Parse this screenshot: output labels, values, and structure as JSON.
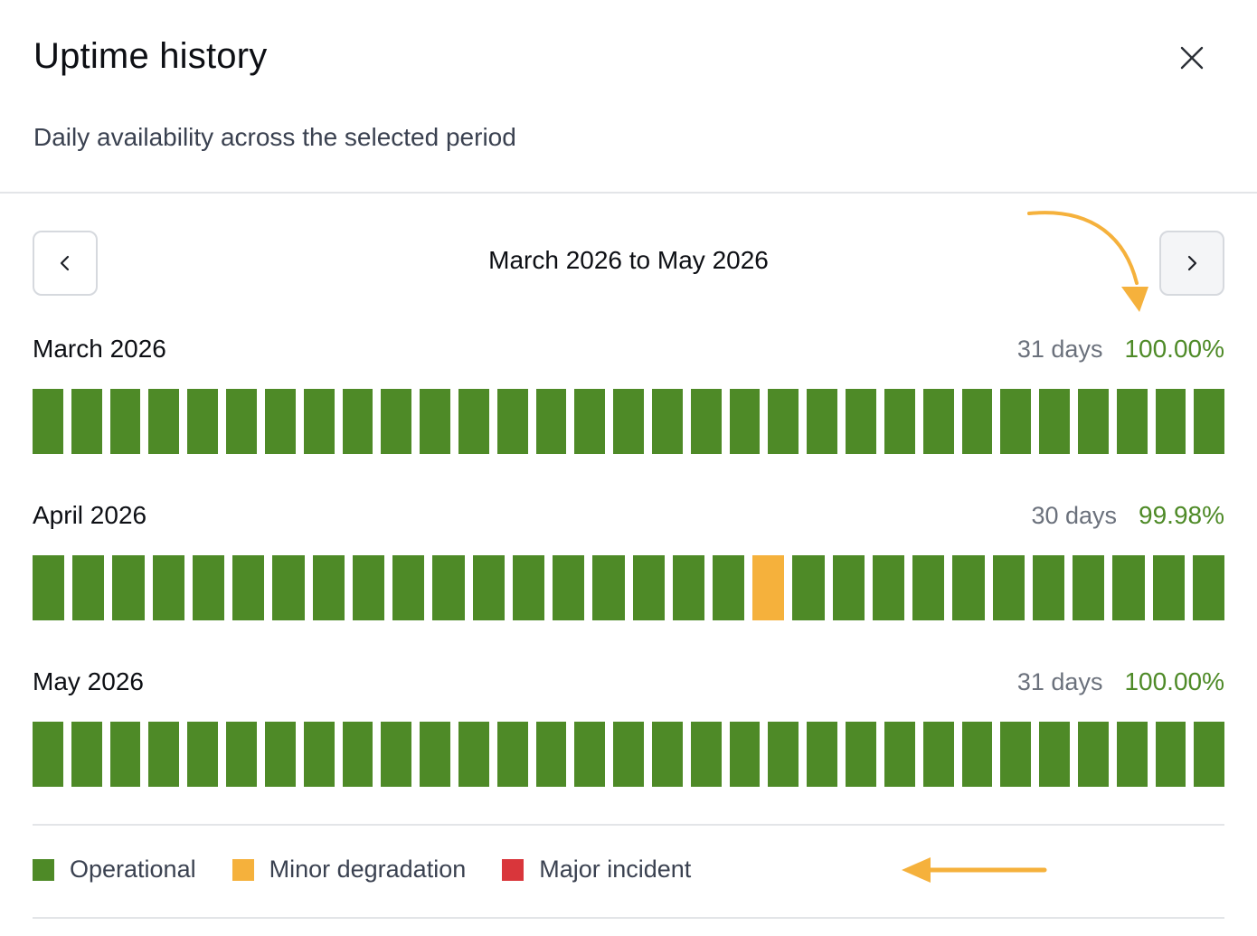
{
  "header": {
    "title": "Uptime history",
    "subtitle": "Daily availability across the selected period"
  },
  "navigation": {
    "range_label": "March 2026 to May 2026"
  },
  "months": [
    {
      "name": "March 2026",
      "days_label": "31 days",
      "uptime": "100.00%",
      "days": 31,
      "minor_days": [],
      "major_days": []
    },
    {
      "name": "April 2026",
      "days_label": "30 days",
      "uptime": "99.98%",
      "days": 30,
      "minor_days": [
        19
      ],
      "major_days": []
    },
    {
      "name": "May 2026",
      "days_label": "31 days",
      "uptime": "100.00%",
      "days": 31,
      "minor_days": [],
      "major_days": []
    }
  ],
  "legend": [
    {
      "label": "Operational",
      "color": "#4e8a27"
    },
    {
      "label": "Minor degradation",
      "color": "#f5b13c"
    },
    {
      "label": "Major incident",
      "color": "#d9363b"
    }
  ],
  "icons": {
    "close": "close-icon",
    "prev": "chevron-left-icon",
    "next": "chevron-right-icon"
  },
  "colors": {
    "operational": "#4e8a27",
    "minor": "#f5b13c",
    "major": "#d9363b",
    "annotation_arrow": "#f5b13c"
  }
}
